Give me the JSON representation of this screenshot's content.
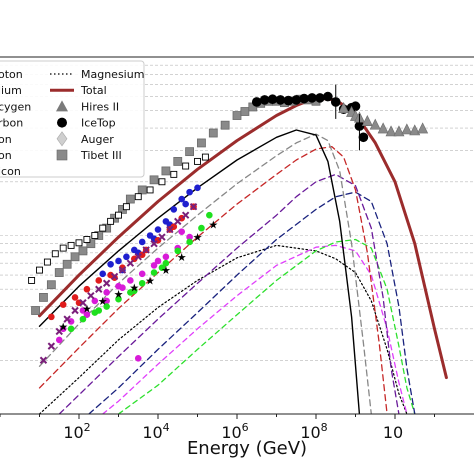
{
  "chart_data": {
    "type": "line",
    "xlabel": "Energy (GeV)",
    "ylabel": "",
    "xscale": "log",
    "yscale": "log",
    "xlim": [
      1,
      1000000000000
    ],
    "ylim": [
      100,
      10000
    ],
    "grid": "horizontal minor",
    "legend_position": "top-left",
    "x_tick_labels": [
      "10^2",
      "10^4",
      "10^6",
      "10^8",
      "10"
    ],
    "legend_entries": [
      {
        "label": "oton",
        "style": "line",
        "color": "#000000"
      },
      {
        "label": "lium",
        "style": "line",
        "color": "#888888"
      },
      {
        "label": "cygen",
        "style": "line",
        "color": "#c62828"
      },
      {
        "label": "rbon",
        "style": "line",
        "color": "#6a1b9a"
      },
      {
        "label": "on",
        "style": "line",
        "color": "#1a237e"
      },
      {
        "label": "on",
        "style": "line",
        "color": "#2ee02e"
      },
      {
        "label": "icon",
        "style": "line",
        "color": "#e040fb"
      },
      {
        "label": "Magnesium",
        "style": "dotted",
        "color": "#000000"
      },
      {
        "label": "Total",
        "style": "line",
        "color": "#9b2c2c"
      },
      {
        "label": "Hires II",
        "style": "triangle",
        "color": "#7a7a7a"
      },
      {
        "label": "IceTop",
        "style": "circle",
        "color": "#000000"
      },
      {
        "label": "Auger",
        "style": "diamond",
        "color": "#cfcfcf"
      },
      {
        "label": "Tibet III",
        "style": "square",
        "color": "#8a8a8a"
      }
    ],
    "series": [
      {
        "name": "Total",
        "color": "#9b2c2c",
        "width": 3,
        "dash": "",
        "x": [
          1,
          2,
          3,
          4,
          5,
          6,
          7,
          7.5,
          8,
          8.5,
          9,
          9.5,
          10,
          10.5,
          11,
          11.3
        ],
        "y": [
          355,
          600,
          980,
          1550,
          2350,
          3400,
          4700,
          5350,
          5900,
          5750,
          4800,
          3300,
          2000,
          900,
          300,
          160
        ]
      },
      {
        "name": "oton",
        "color": "#000000",
        "width": 1.4,
        "dash": "",
        "x": [
          1,
          2,
          3,
          4,
          5,
          6,
          7,
          7.5,
          8,
          8.3,
          8.6,
          8.9,
          9.1
        ],
        "y": [
          310,
          520,
          820,
          1250,
          1850,
          2650,
          3550,
          3900,
          3650,
          2600,
          1200,
          350,
          100
        ]
      },
      {
        "name": "lium",
        "color": "#888888",
        "width": 1.3,
        "dash": "6,4",
        "x": [
          1,
          2,
          3,
          4,
          5,
          6,
          7,
          7.5,
          8,
          8.3,
          8.6,
          8.9,
          9.2,
          9.4
        ],
        "y": [
          185,
          320,
          540,
          850,
          1300,
          1950,
          2800,
          3300,
          3700,
          3400,
          2300,
          900,
          250,
          100
        ]
      },
      {
        "name": "cygen",
        "color": "#c62828",
        "width": 1.3,
        "dash": "6,4",
        "x": [
          1,
          2,
          3,
          4,
          5,
          6,
          7,
          7.5,
          8,
          8.4,
          8.7,
          9,
          9.3,
          9.6,
          9.8
        ],
        "y": [
          140,
          235,
          390,
          620,
          980,
          1500,
          2200,
          2650,
          3050,
          3150,
          2750,
          1800,
          800,
          250,
          100
        ]
      },
      {
        "name": "rbon",
        "color": "#6a1b9a",
        "width": 1.3,
        "dash": "6,4",
        "x": [
          1.5,
          2,
          3,
          4,
          5,
          6,
          7,
          7.5,
          8,
          8.5,
          9,
          9.4,
          9.7,
          9.9,
          10.1
        ],
        "y": [
          100,
          128,
          210,
          340,
          540,
          850,
          1300,
          1650,
          2000,
          2200,
          1900,
          1100,
          450,
          180,
          100
        ]
      },
      {
        "name": "on",
        "color": "#1a237e",
        "width": 1.3,
        "dash": "6,4",
        "x": [
          2.25,
          3,
          4,
          5,
          6,
          7,
          8,
          8.5,
          9,
          9.4,
          9.8,
          10.1,
          10.3,
          10.5
        ],
        "y": [
          100,
          140,
          230,
          370,
          600,
          950,
          1400,
          1650,
          1750,
          1550,
          900,
          400,
          180,
          100
        ]
      },
      {
        "name": "on",
        "color": "#2ee02e",
        "width": 1.3,
        "dash": "5,4",
        "x": [
          3,
          4,
          5,
          6,
          7,
          8,
          8.5,
          9,
          9.4,
          9.8,
          10.1,
          10.3,
          10.5
        ],
        "y": [
          100,
          145,
          230,
          360,
          560,
          820,
          920,
          950,
          850,
          500,
          240,
          140,
          100
        ]
      },
      {
        "name": "icon",
        "color": "#e040fb",
        "width": 1.3,
        "dash": "5,4",
        "x": [
          2.6,
          3,
          4,
          5,
          6,
          7,
          8,
          8.5,
          9,
          9.4,
          9.8,
          10.1,
          10.3
        ],
        "y": [
          100,
          118,
          190,
          300,
          460,
          680,
          860,
          880,
          820,
          600,
          300,
          150,
          100
        ]
      },
      {
        "name": "Magnesium",
        "color": "#000000",
        "width": 1.2,
        "dash": "1.5,2.5",
        "x": [
          1,
          2,
          3,
          4,
          5,
          6,
          7,
          8,
          8.5,
          9,
          9.4,
          9.8,
          10.1,
          10.3
        ],
        "y": [
          100,
          160,
          260,
          395,
          560,
          750,
          880,
          820,
          740,
          620,
          430,
          230,
          130,
          100
        ]
      }
    ],
    "scatter_groups": [
      {
        "name": "Tibet III",
        "marker": "square",
        "fill": "#8a8a8a",
        "stroke": "#6a6a6a",
        "size": 8,
        "x": [
          0.9,
          1.1,
          1.3,
          1.5,
          1.7,
          1.9,
          2.1,
          2.3,
          2.5,
          2.7,
          2.9,
          3.1,
          3.3,
          3.6,
          3.9,
          4.2,
          4.5,
          4.8,
          5.1,
          5.4,
          5.7,
          6.0,
          6.2,
          6.4,
          6.6,
          6.8,
          7.0,
          7.2,
          7.4,
          7.6,
          7.8,
          8.0
        ],
        "y": [
          380,
          450,
          530,
          620,
          690,
          760,
          820,
          900,
          1000,
          1100,
          1250,
          1400,
          1600,
          1800,
          2050,
          2300,
          2600,
          2950,
          3300,
          3750,
          4150,
          4700,
          4950,
          5250,
          5500,
          5650,
          5650,
          5550,
          5650,
          5800,
          5750,
          5650
        ]
      },
      {
        "name": "Tibet III open",
        "marker": "square-open",
        "fill": "none",
        "stroke": "#000000",
        "size": 6,
        "x": [
          0.8,
          1.0,
          1.2,
          1.4,
          1.6,
          1.8,
          2.0,
          2.2,
          2.4,
          2.6,
          2.8,
          3.0,
          3.2,
          3.5,
          3.8,
          4.1,
          4.4,
          4.7,
          5.0,
          5.2
        ],
        "y": [
          560,
          640,
          710,
          790,
          850,
          880,
          910,
          950,
          1000,
          1100,
          1200,
          1300,
          1450,
          1650,
          1800,
          2000,
          2200,
          2450,
          2600,
          2750
        ]
      },
      {
        "name": "IceTop",
        "marker": "circle",
        "fill": "#000000",
        "stroke": "#000000",
        "size": 9,
        "x": [
          6.5,
          6.7,
          6.9,
          7.1,
          7.3,
          7.5,
          7.7,
          7.9,
          8.1,
          8.3,
          8.5,
          8.7,
          8.9,
          9.0,
          9.1,
          9.2
        ],
        "y": [
          5600,
          5750,
          5800,
          5750,
          5700,
          5750,
          5850,
          5900,
          5900,
          6000,
          5600,
          5100,
          5200,
          5300,
          4100,
          3550
        ]
      },
      {
        "name": "Hires II",
        "marker": "triangle",
        "fill": "#8a8a8a",
        "stroke": "#6a6a6a",
        "size": 10,
        "x": [
          8.7,
          8.9,
          9.0,
          9.1,
          9.3,
          9.5,
          9.7,
          9.9,
          10.1,
          10.3,
          10.5,
          10.7
        ],
        "y": [
          5200,
          4950,
          4700,
          4600,
          4400,
          4200,
          4000,
          3850,
          3850,
          3950,
          3900,
          4000
        ]
      },
      {
        "name": "blue",
        "marker": "circle",
        "fill": "#1f1fcf",
        "stroke": "#1f1fcf",
        "size": 6,
        "x": [
          2.6,
          2.8,
          3.0,
          3.2,
          3.4,
          3.6,
          3.8,
          4.0,
          4.2,
          4.4,
          4.6,
          4.8,
          5.0,
          3.1,
          3.5,
          3.9,
          4.3,
          4.7
        ],
        "y": [
          610,
          690,
          720,
          760,
          830,
          920,
          1000,
          1080,
          1200,
          1400,
          1600,
          1750,
          1850,
          640,
          800,
          960,
          1150,
          1500
        ]
      },
      {
        "name": "red",
        "marker": "circle",
        "fill": "#e01c1c",
        "stroke": "#e01c1c",
        "size": 6,
        "x": [
          1.3,
          1.6,
          1.9,
          2.2,
          2.5,
          2.8,
          3.1,
          3.4,
          3.7,
          4.0,
          4.3,
          4.6,
          4.9,
          2.0,
          2.9,
          3.6,
          4.4
        ],
        "y": [
          350,
          410,
          450,
          500,
          560,
          600,
          660,
          740,
          830,
          940,
          1080,
          1250,
          1450,
          420,
          580,
          780,
          1120
        ]
      },
      {
        "name": "magenta",
        "marker": "circle",
        "fill": "#d81bd8",
        "stroke": "#d81bd8",
        "size": 6,
        "x": [
          1.5,
          1.8,
          2.1,
          2.4,
          2.7,
          3.0,
          3.3,
          3.6,
          3.9,
          4.2,
          4.5,
          4.8,
          2.2,
          3.1,
          4.0,
          4.6,
          1.6,
          2.7
        ],
        "y": [
          260,
          330,
          380,
          430,
          480,
          520,
          560,
          610,
          680,
          760,
          850,
          980,
          360,
          510,
          720,
          1050,
          300,
          430
        ]
      },
      {
        "name": "green",
        "marker": "circle",
        "fill": "#1ee01e",
        "stroke": "#1ee01e",
        "size": 6,
        "x": [
          1.8,
          2.1,
          2.4,
          2.7,
          3.0,
          3.3,
          3.6,
          3.9,
          4.2,
          4.5,
          4.8,
          5.1,
          5.3,
          2.5,
          3.4,
          4.1
        ],
        "y": [
          300,
          340,
          370,
          400,
          440,
          480,
          540,
          620,
          700,
          820,
          920,
          1100,
          1300,
          380,
          490,
          660
        ]
      },
      {
        "name": "purple-x",
        "marker": "x",
        "fill": "#7a1f7a",
        "stroke": "#7a1f7a",
        "size": 6,
        "x": [
          1.1,
          1.3,
          1.5,
          1.7,
          1.9,
          2.1,
          2.3,
          2.5,
          2.7,
          2.9,
          3.1,
          3.3,
          3.5,
          3.7,
          3.9,
          4.1,
          4.3,
          4.5,
          4.7,
          4.9
        ],
        "y": [
          200,
          240,
          290,
          340,
          380,
          420,
          460,
          500,
          540,
          590,
          640,
          700,
          760,
          830,
          900,
          980,
          1080,
          1200,
          1300,
          1450
        ]
      },
      {
        "name": "black-star",
        "marker": "star",
        "fill": "#000000",
        "stroke": "#000000",
        "size": 6,
        "x": [
          1.6,
          2.2,
          2.6,
          3.0,
          3.4,
          3.8,
          4.2,
          4.6,
          5.0,
          5.4
        ],
        "y": [
          310,
          390,
          430,
          470,
          510,
          560,
          640,
          760,
          980,
          1150
        ]
      },
      {
        "name": "single-magenta",
        "marker": "circle",
        "fill": "#d81bd8",
        "stroke": "#d81bd8",
        "size": 6,
        "x": [
          3.5
        ],
        "y": [
          205
        ]
      }
    ]
  }
}
